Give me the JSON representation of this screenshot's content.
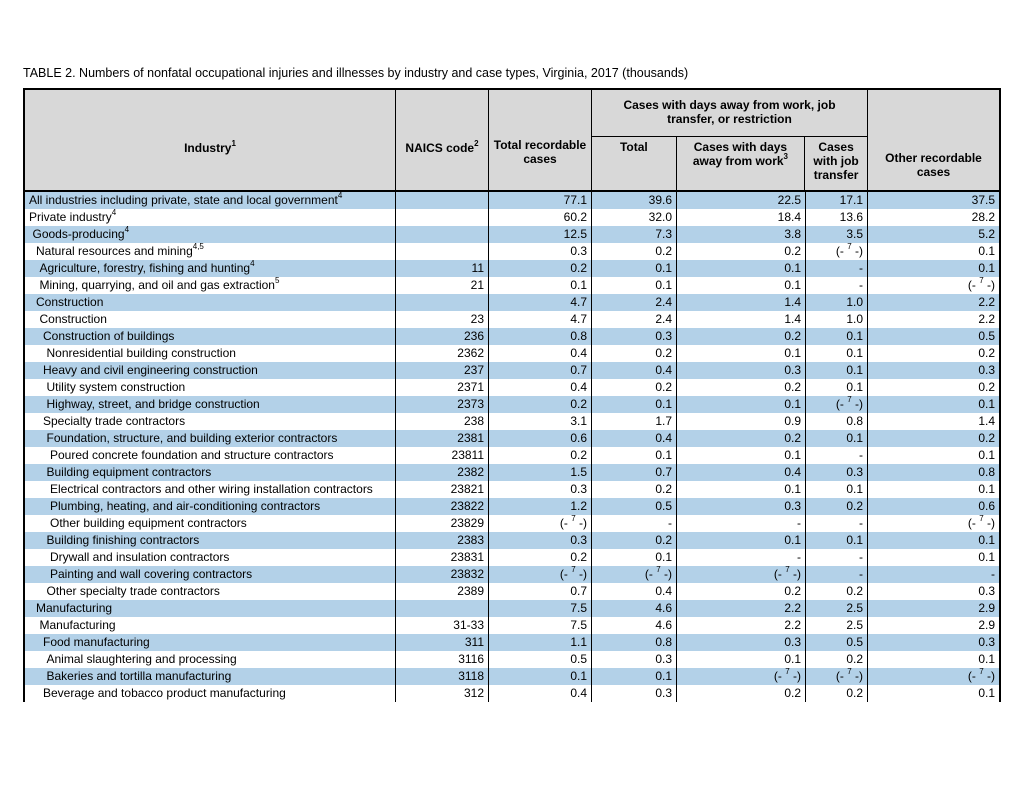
{
  "page": {
    "title": "TABLE 2. Numbers of nonfatal occupational injuries and illnesses by industry and case types, Virginia, 2017 (thousands)"
  },
  "colors": {
    "row_alt_blue": "#b3d1e8",
    "header_gray": "#d8d8d8",
    "border": "#000000"
  },
  "symbols": {
    "confidential_sentinel": "(-7-)",
    "confidential_display": "(- 7 -)",
    "no_data": "-"
  },
  "table": {
    "header": {
      "industry": {
        "label": "Industry",
        "footnote": "1"
      },
      "naics": {
        "label": "NAICS code",
        "footnote": "2"
      },
      "total_recordable": {
        "label": "Total recordable cases"
      },
      "days_away_group": {
        "label": "Cases with days away from work, job transfer, or restriction"
      },
      "days_away_total": {
        "label": "Total"
      },
      "days_away_from_work": {
        "label": "Cases with days away from work",
        "footnote": "3"
      },
      "job_transfer": {
        "label": "Cases with job transfer"
      },
      "other_recordable": {
        "label": "Other recordable cases"
      }
    },
    "rows": [
      {
        "label": "All industries including private, state and local government",
        "footnote": "4",
        "naics": "",
        "indent": 0,
        "values": [
          "77.1",
          "39.6",
          "22.5",
          "17.1",
          "37.5"
        ]
      },
      {
        "label": "Private industry",
        "footnote": "4",
        "naics": "",
        "indent": 0,
        "values": [
          "60.2",
          "32.0",
          "18.4",
          "13.6",
          "28.2"
        ]
      },
      {
        "label": "Goods-producing",
        "footnote": "4",
        "naics": "",
        "indent": 1,
        "values": [
          "12.5",
          "7.3",
          "3.8",
          "3.5",
          "5.2"
        ]
      },
      {
        "label": "Natural resources and mining",
        "footnote": "4,5",
        "naics": "",
        "indent": 2,
        "values": [
          "0.3",
          "0.2",
          "0.2",
          "(-7-)",
          "0.1"
        ]
      },
      {
        "label": "Agriculture, forestry, fishing and hunting",
        "footnote": "4",
        "naics": "11",
        "indent": 3,
        "values": [
          "0.2",
          "0.1",
          "0.1",
          "-",
          "0.1"
        ]
      },
      {
        "label": "Mining, quarrying, and oil and gas extraction",
        "footnote": "5",
        "naics": "21",
        "indent": 3,
        "values": [
          "0.1",
          "0.1",
          "0.1",
          "-",
          "(-7-)"
        ]
      },
      {
        "label": "Construction",
        "footnote": "",
        "naics": "",
        "indent": 2,
        "values": [
          "4.7",
          "2.4",
          "1.4",
          "1.0",
          "2.2"
        ]
      },
      {
        "label": "Construction",
        "footnote": "",
        "naics": "23",
        "indent": 3,
        "values": [
          "4.7",
          "2.4",
          "1.4",
          "1.0",
          "2.2"
        ]
      },
      {
        "label": "Construction of buildings",
        "footnote": "",
        "naics": "236",
        "indent": 4,
        "values": [
          "0.8",
          "0.3",
          "0.2",
          "0.1",
          "0.5"
        ]
      },
      {
        "label": "Nonresidential building construction",
        "footnote": "",
        "naics": "2362",
        "indent": 5,
        "values": [
          "0.4",
          "0.2",
          "0.1",
          "0.1",
          "0.2"
        ]
      },
      {
        "label": "Heavy and civil engineering construction",
        "footnote": "",
        "naics": "237",
        "indent": 4,
        "values": [
          "0.7",
          "0.4",
          "0.3",
          "0.1",
          "0.3"
        ]
      },
      {
        "label": "Utility system construction",
        "footnote": "",
        "naics": "2371",
        "indent": 5,
        "values": [
          "0.4",
          "0.2",
          "0.2",
          "0.1",
          "0.2"
        ]
      },
      {
        "label": "Highway, street, and bridge construction",
        "footnote": "",
        "naics": "2373",
        "indent": 5,
        "values": [
          "0.2",
          "0.1",
          "0.1",
          "(-7-)",
          "0.1"
        ]
      },
      {
        "label": "Specialty trade contractors",
        "footnote": "",
        "naics": "238",
        "indent": 4,
        "values": [
          "3.1",
          "1.7",
          "0.9",
          "0.8",
          "1.4"
        ]
      },
      {
        "label": "Foundation, structure, and building exterior contractors",
        "footnote": "",
        "naics": "2381",
        "indent": 5,
        "values": [
          "0.6",
          "0.4",
          "0.2",
          "0.1",
          "0.2"
        ]
      },
      {
        "label": "Poured concrete foundation and structure contractors",
        "footnote": "",
        "naics": "23811",
        "indent": 6,
        "values": [
          "0.2",
          "0.1",
          "0.1",
          "-",
          "0.1"
        ]
      },
      {
        "label": "Building equipment contractors",
        "footnote": "",
        "naics": "2382",
        "indent": 5,
        "values": [
          "1.5",
          "0.7",
          "0.4",
          "0.3",
          "0.8"
        ]
      },
      {
        "label": "Electrical contractors and other wiring installation contractors",
        "footnote": "",
        "naics": "23821",
        "indent": 6,
        "values": [
          "0.3",
          "0.2",
          "0.1",
          "0.1",
          "0.1"
        ]
      },
      {
        "label": "Plumbing, heating, and air-conditioning contractors",
        "footnote": "",
        "naics": "23822",
        "indent": 6,
        "values": [
          "1.2",
          "0.5",
          "0.3",
          "0.2",
          "0.6"
        ]
      },
      {
        "label": "Other building equipment contractors",
        "footnote": "",
        "naics": "23829",
        "indent": 6,
        "values": [
          "(-7-)",
          "-",
          "-",
          "-",
          "(-7-)"
        ]
      },
      {
        "label": "Building finishing contractors",
        "footnote": "",
        "naics": "2383",
        "indent": 5,
        "values": [
          "0.3",
          "0.2",
          "0.1",
          "0.1",
          "0.1"
        ]
      },
      {
        "label": "Drywall and insulation contractors",
        "footnote": "",
        "naics": "23831",
        "indent": 6,
        "values": [
          "0.2",
          "0.1",
          "-",
          "-",
          "0.1"
        ]
      },
      {
        "label": "Painting and wall covering contractors",
        "footnote": "",
        "naics": "23832",
        "indent": 6,
        "values": [
          "(-7-)",
          "(-7-)",
          "(-7-)",
          "-",
          "-"
        ]
      },
      {
        "label": "Other specialty trade contractors",
        "footnote": "",
        "naics": "2389",
        "indent": 5,
        "values": [
          "0.7",
          "0.4",
          "0.2",
          "0.2",
          "0.3"
        ]
      },
      {
        "label": "Manufacturing",
        "footnote": "",
        "naics": "",
        "indent": 2,
        "values": [
          "7.5",
          "4.6",
          "2.2",
          "2.5",
          "2.9"
        ]
      },
      {
        "label": "Manufacturing",
        "footnote": "",
        "naics": "31-33",
        "indent": 3,
        "values": [
          "7.5",
          "4.6",
          "2.2",
          "2.5",
          "2.9"
        ]
      },
      {
        "label": "Food manufacturing",
        "footnote": "",
        "naics": "311",
        "indent": 4,
        "values": [
          "1.1",
          "0.8",
          "0.3",
          "0.5",
          "0.3"
        ]
      },
      {
        "label": "Animal slaughtering and processing",
        "footnote": "",
        "naics": "3116",
        "indent": 5,
        "values": [
          "0.5",
          "0.3",
          "0.1",
          "0.2",
          "0.1"
        ]
      },
      {
        "label": "Bakeries and tortilla manufacturing",
        "footnote": "",
        "naics": "3118",
        "indent": 5,
        "values": [
          "0.1",
          "0.1",
          "(-7-)",
          "(-7-)",
          "(-7-)"
        ]
      },
      {
        "label": "Beverage and tobacco product manufacturing",
        "footnote": "",
        "naics": "312",
        "indent": 4,
        "values": [
          "0.4",
          "0.3",
          "0.2",
          "0.2",
          "0.1"
        ]
      }
    ]
  }
}
